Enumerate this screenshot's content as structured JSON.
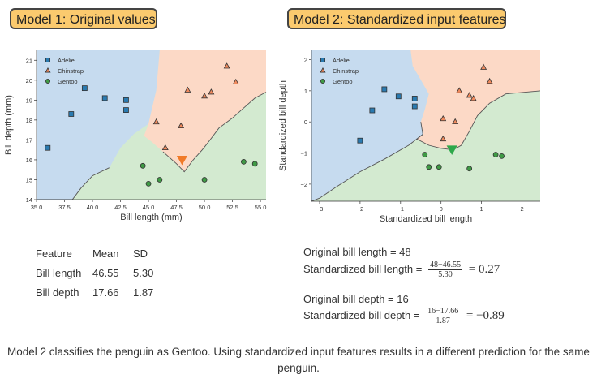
{
  "model1": {
    "title": "Model 1: Original values"
  },
  "model2": {
    "title": "Model 2: Standardized input features"
  },
  "chart_data": [
    {
      "type": "scatter",
      "title": "Model 1: Original values",
      "xlabel": "Bill length (mm)",
      "ylabel": "Bill depth (mm)",
      "xlim": [
        35.0,
        55.5
      ],
      "ylim": [
        14.0,
        21.5
      ],
      "xticks": [
        "35.0",
        "37.5",
        "40.0",
        "42.5",
        "45.0",
        "47.5",
        "50.0",
        "52.5",
        "55.0"
      ],
      "xtick_values": [
        35.0,
        37.5,
        40.0,
        42.5,
        45.0,
        47.5,
        50.0,
        52.5,
        55.0
      ],
      "yticks": [
        "14",
        "15",
        "16",
        "17",
        "18",
        "19",
        "20",
        "21"
      ],
      "ytick_values": [
        14,
        15,
        16,
        17,
        18,
        19,
        20,
        21
      ],
      "legend": "top-left",
      "regions": {
        "Adelie": [
          [
            35.0,
            21.5
          ],
          [
            46.0,
            21.5
          ],
          [
            45.7,
            19.5
          ],
          [
            45.0,
            17.8
          ],
          [
            43.7,
            17.3
          ],
          [
            42.5,
            16.6
          ],
          [
            41.5,
            15.6
          ],
          [
            40.0,
            15.2
          ],
          [
            39.0,
            14.6
          ],
          [
            38.2,
            14.0
          ],
          [
            35.0,
            14.0
          ]
        ],
        "Chinstrap": [
          [
            46.0,
            21.5
          ],
          [
            55.5,
            21.5
          ],
          [
            55.5,
            19.4
          ],
          [
            54.5,
            19.1
          ],
          [
            53.5,
            18.6
          ],
          [
            52.5,
            18.1
          ],
          [
            51.3,
            17.6
          ],
          [
            50.5,
            17.0
          ],
          [
            49.8,
            16.5
          ],
          [
            49.0,
            16.0
          ],
          [
            48.2,
            15.4
          ],
          [
            47.5,
            15.8
          ],
          [
            46.3,
            16.4
          ],
          [
            45.3,
            16.9
          ],
          [
            44.6,
            17.2
          ],
          [
            45.0,
            17.8
          ],
          [
            45.7,
            19.5
          ]
        ]
      },
      "region_colors": {
        "Adelie": "#c6dbef",
        "Chinstrap": "#fcd9c6",
        "Gentoo": "#d3ead0"
      },
      "series": [
        {
          "name": "Adelie",
          "marker": "square",
          "color": "#2a7ab0",
          "points": [
            [
              39.3,
              19.6
            ],
            [
              41.1,
              19.1
            ],
            [
              43.0,
              19.0
            ],
            [
              43.0,
              18.5
            ],
            [
              38.1,
              18.3
            ],
            [
              36.0,
              16.6
            ]
          ]
        },
        {
          "name": "Chinstrap",
          "marker": "triangle",
          "color": "#f08a5d",
          "points": [
            [
              52.0,
              20.7
            ],
            [
              52.8,
              19.9
            ],
            [
              48.5,
              19.5
            ],
            [
              50.0,
              19.2
            ],
            [
              50.6,
              19.4
            ],
            [
              45.7,
              17.9
            ],
            [
              47.9,
              17.7
            ],
            [
              46.5,
              16.6
            ]
          ]
        },
        {
          "name": "Gentoo",
          "marker": "circle",
          "color": "#3f9a45",
          "points": [
            [
              44.5,
              15.7
            ],
            [
              45.0,
              14.8
            ],
            [
              46.0,
              15.0
            ],
            [
              50.0,
              15.0
            ],
            [
              53.5,
              15.9
            ],
            [
              54.5,
              15.8
            ]
          ]
        }
      ],
      "query_point": {
        "x": 48.0,
        "y": 16.0,
        "color": "#f07a28",
        "marker": "triangle-down"
      }
    },
    {
      "type": "scatter",
      "title": "Model 2: Standardized input features",
      "xlabel": "Standardized bill length",
      "ylabel": "Standardized bill depth",
      "xlim": [
        -3.2,
        2.45
      ],
      "ylim": [
        -2.55,
        2.3
      ],
      "xticks": [
        "−3",
        "−2",
        "−1",
        "0",
        "1",
        "2"
      ],
      "xtick_values": [
        -3,
        -2,
        -1,
        0,
        1,
        2
      ],
      "yticks": [
        "−2",
        "−1",
        "0",
        "1",
        "2"
      ],
      "ytick_values": [
        -2,
        -1,
        0,
        1,
        2
      ],
      "legend": "top-left",
      "regions": {
        "Adelie": [
          [
            -3.2,
            2.3
          ],
          [
            -0.75,
            2.3
          ],
          [
            -0.7,
            1.8
          ],
          [
            -0.5,
            1.35
          ],
          [
            -0.3,
            0.9
          ],
          [
            -0.4,
            0.4
          ],
          [
            -0.5,
            0.0
          ],
          [
            -0.45,
            -0.4
          ],
          [
            -0.6,
            -0.55
          ],
          [
            -0.8,
            -0.75
          ],
          [
            -1.4,
            -1.2
          ],
          [
            -2.0,
            -1.6
          ],
          [
            -2.6,
            -2.1
          ],
          [
            -3.0,
            -2.45
          ],
          [
            -3.2,
            -2.55
          ]
        ],
        "Chinstrap": [
          [
            -0.75,
            2.3
          ],
          [
            2.45,
            2.3
          ],
          [
            2.45,
            1.0
          ],
          [
            1.6,
            0.9
          ],
          [
            1.2,
            0.6
          ],
          [
            0.9,
            0.2
          ],
          [
            0.7,
            -0.3
          ],
          [
            0.5,
            -0.75
          ],
          [
            0.3,
            -0.9
          ],
          [
            0.0,
            -0.85
          ],
          [
            -0.3,
            -0.75
          ],
          [
            -0.6,
            -0.55
          ],
          [
            -0.45,
            -0.4
          ],
          [
            -0.5,
            0.0
          ],
          [
            -0.4,
            0.4
          ],
          [
            -0.3,
            0.9
          ],
          [
            -0.5,
            1.35
          ],
          [
            -0.7,
            1.8
          ]
        ]
      },
      "region_colors": {
        "Adelie": "#c6dbef",
        "Chinstrap": "#fcd9c6",
        "Gentoo": "#d3ead0"
      },
      "series": [
        {
          "name": "Adelie",
          "marker": "square",
          "color": "#2a7ab0",
          "points": [
            [
              -1.4,
              1.05
            ],
            [
              -1.05,
              0.82
            ],
            [
              -0.65,
              0.75
            ],
            [
              -0.65,
              0.5
            ],
            [
              -1.7,
              0.37
            ],
            [
              -2.0,
              -0.6
            ]
          ]
        },
        {
          "name": "Chinstrap",
          "marker": "triangle",
          "color": "#f08a5d",
          "points": [
            [
              1.05,
              1.75
            ],
            [
              1.2,
              1.3
            ],
            [
              0.45,
              1.0
            ],
            [
              0.7,
              0.85
            ],
            [
              0.8,
              0.75
            ],
            [
              0.05,
              0.1
            ],
            [
              0.35,
              0.0
            ],
            [
              0.05,
              -0.55
            ]
          ]
        },
        {
          "name": "Gentoo",
          "marker": "circle",
          "color": "#3f9a45",
          "points": [
            [
              -0.4,
              -1.05
            ],
            [
              -0.3,
              -1.45
            ],
            [
              -0.05,
              -1.45
            ],
            [
              0.7,
              -1.5
            ],
            [
              1.35,
              -1.05
            ],
            [
              1.5,
              -1.1
            ]
          ]
        }
      ],
      "query_point": {
        "x": 0.27,
        "y": -0.89,
        "color": "#2ea84a",
        "marker": "triangle-down"
      }
    }
  ],
  "table": {
    "headers": [
      "Feature",
      "Mean",
      "SD"
    ],
    "rows": [
      [
        "Bill length",
        "46.55",
        "5.30"
      ],
      [
        "Bill depth",
        "17.66",
        "1.87"
      ]
    ]
  },
  "calc": {
    "orig_length": "Original bill length = 48",
    "std_length_label": "Standardized bill length =",
    "std_length_num": "48−46.55",
    "std_length_den": "5.30",
    "std_length_result": "= 0.27",
    "orig_depth": "Original bill depth = 16",
    "std_depth_label": "Standardized bill depth =",
    "std_depth_num": "16−17.66",
    "std_depth_den": "1.87",
    "std_depth_result": "= −0.89"
  },
  "caption": "Model 2 classifies the penguin as Gentoo. Using standardized input features results in a different prediction for the same penguin."
}
